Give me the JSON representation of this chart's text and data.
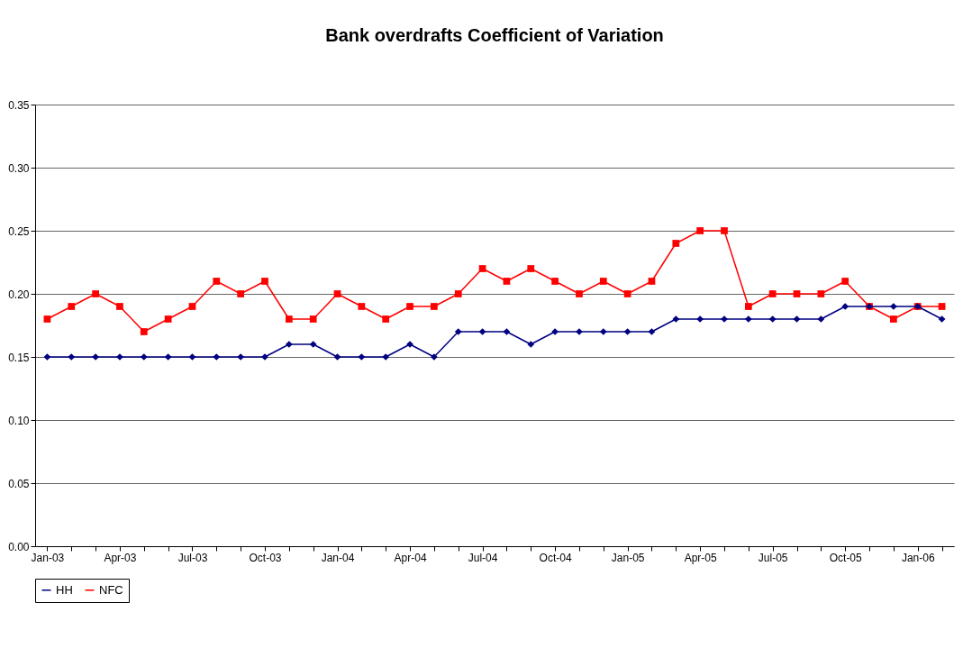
{
  "chart_data": {
    "type": "line",
    "title": "Bank overdrafts Coefficient of Variation",
    "categories": [
      "Jan-03",
      null,
      null,
      "Apr-03",
      null,
      null,
      "Jul-03",
      null,
      null,
      "Oct-03",
      null,
      null,
      "Jan-04",
      null,
      null,
      "Apr-04",
      null,
      null,
      "Jul-04",
      null,
      null,
      "Oct-04",
      null,
      null,
      "Jan-05",
      null,
      null,
      "Apr-05",
      null,
      null,
      "Jul-05",
      null,
      null,
      "Oct-05",
      null,
      null,
      "Jan-06",
      null
    ],
    "series": [
      {
        "name": "HH",
        "color": "#000080",
        "marker": "diamond",
        "values": [
          0.15,
          0.15,
          0.15,
          0.15,
          0.15,
          0.15,
          0.15,
          0.15,
          0.15,
          0.15,
          0.16,
          0.16,
          0.15,
          0.15,
          0.15,
          0.16,
          0.15,
          0.17,
          0.17,
          0.17,
          0.16,
          0.17,
          0.17,
          0.17,
          0.17,
          0.17,
          0.18,
          0.18,
          0.18,
          0.18,
          0.18,
          0.18,
          0.18,
          0.19,
          0.19,
          0.19,
          0.19,
          0.18
        ]
      },
      {
        "name": "NFC",
        "color": "#ff0000",
        "marker": "square",
        "values": [
          0.18,
          0.19,
          0.2,
          0.19,
          0.17,
          0.18,
          0.19,
          0.21,
          0.2,
          0.21,
          0.18,
          0.18,
          0.2,
          0.19,
          0.18,
          0.19,
          0.19,
          0.2,
          0.22,
          0.21,
          0.22,
          0.21,
          0.2,
          0.21,
          0.2,
          0.21,
          0.24,
          0.25,
          0.25,
          0.19,
          0.2,
          0.2,
          0.2,
          0.21,
          0.19,
          0.18,
          0.19,
          0.19
        ]
      }
    ],
    "ylim": [
      0,
      0.35
    ],
    "yticks": [
      {
        "value": 0,
        "label": "0.00"
      },
      {
        "value": 0.05,
        "label": "0.05"
      },
      {
        "value": 0.1,
        "label": "0.10"
      },
      {
        "value": 0.15,
        "label": "0.15"
      },
      {
        "value": 0.2,
        "label": "0.20"
      },
      {
        "value": 0.25,
        "label": "0.25"
      },
      {
        "value": 0.3,
        "label": "0.30"
      },
      {
        "value": 0.35,
        "label": "0.35"
      }
    ],
    "grid": "y",
    "legend": "bottom",
    "line_style": "solid"
  }
}
